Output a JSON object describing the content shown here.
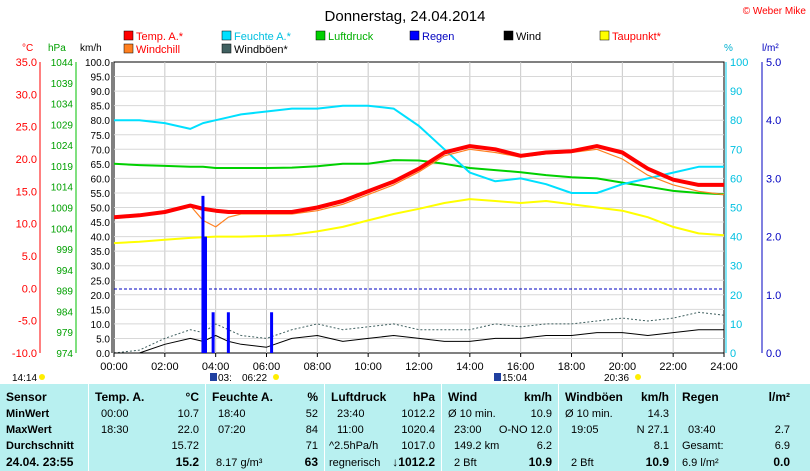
{
  "title": "Donnerstag, 24.04.2014",
  "credit": "© Weber Mike",
  "colors": {
    "temp": "#ff0000",
    "windchill": "#ff8020",
    "humidity": "#00e0ff",
    "pressure": "#00d000",
    "rain": "#0000ff",
    "wind": "#000000",
    "gust": "#406060",
    "dewpoint": "#ffff00"
  },
  "legend": [
    {
      "key": "temp",
      "label": "Temp. A.*"
    },
    {
      "key": "humidity",
      "label": "Feuchte A.*"
    },
    {
      "key": "pressure",
      "label": "Luftdruck"
    },
    {
      "key": "rain",
      "label": "Regen"
    },
    {
      "key": "wind",
      "label": "Wind"
    },
    {
      "key": "dewpoint",
      "label": "Taupunkt*"
    },
    {
      "key": "windchill",
      "label": "Windchill"
    },
    {
      "key": "gust",
      "label": "Windböen*"
    }
  ],
  "axes": {
    "temp_unit": "°C",
    "press_unit": "hPa",
    "wind_unit": "km/h",
    "hum_unit": "%",
    "rain_unit": "l/m²",
    "temp_ticks": [
      "35.0",
      "30.0",
      "25.0",
      "20.0",
      "15.0",
      "10.0",
      "5.0",
      "0.0",
      "-5.0",
      "-10.0"
    ],
    "press_ticks": [
      "1044",
      "1039",
      "1034",
      "1029",
      "1024",
      "1019",
      "1014",
      "1009",
      "1004",
      "999",
      "994",
      "989",
      "984",
      "979",
      "974"
    ],
    "wind_ticks": [
      "100.0",
      "95.0",
      "90.0",
      "85.0",
      "80.0",
      "75.0",
      "70.0",
      "65.0",
      "60.0",
      "55.0",
      "50.0",
      "45.0",
      "40.0",
      "35.0",
      "30.0",
      "25.0",
      "20.0",
      "15.0",
      "10.0",
      "5.0",
      "0.0"
    ],
    "hum_ticks": [
      "100",
      "90",
      "80",
      "70",
      "60",
      "50",
      "40",
      "30",
      "20",
      "10",
      "0"
    ],
    "rain_ticks": [
      "5.0",
      "4.0",
      "3.0",
      "2.0",
      "1.0",
      "0.0"
    ],
    "x_ticks": [
      "00:00",
      "02:00",
      "04:00",
      "06:00",
      "08:00",
      "10:00",
      "12:00",
      "14:00",
      "16:00",
      "18:00",
      "20:00",
      "22:00",
      "24:00"
    ]
  },
  "markers": {
    "m1": "14:14",
    "m2": "03:",
    "m3": "06:22",
    "m4": "15:04",
    "m5": "20:36"
  },
  "chart_data": {
    "type": "line",
    "x_hours": [
      0,
      1,
      2,
      3,
      3.5,
      4,
      4.5,
      5,
      6,
      7,
      8,
      9,
      10,
      11,
      12,
      13,
      14,
      15,
      16,
      17,
      18,
      19,
      20,
      21,
      22,
      23,
      24
    ],
    "series": [
      {
        "name": "Temp. A.*",
        "unit": "°C",
        "values": [
          11.0,
          11.3,
          11.8,
          12.8,
          12.3,
          12.0,
          11.8,
          11.8,
          11.8,
          11.8,
          12.5,
          13.5,
          15.0,
          16.5,
          18.5,
          21.0,
          22.0,
          21.5,
          20.5,
          21.0,
          21.2,
          22.0,
          21.0,
          18.5,
          16.8,
          16.0,
          16.0
        ]
      },
      {
        "name": "Windchill",
        "unit": "°C",
        "values": [
          11.0,
          11.3,
          11.8,
          12.8,
          10.5,
          9.5,
          11.0,
          11.5,
          11.5,
          11.5,
          12.0,
          13.0,
          14.5,
          16.0,
          18.0,
          20.5,
          21.5,
          21.0,
          20.3,
          20.8,
          21.0,
          21.5,
          20.0,
          17.5,
          16.0,
          15.0,
          14.5
        ]
      },
      {
        "name": "Feuchte A.*",
        "unit": "%",
        "values": [
          80,
          80,
          79,
          77,
          79,
          80,
          81,
          82,
          83,
          84,
          84,
          85,
          85,
          84,
          78,
          70,
          62,
          59,
          60,
          58,
          55,
          55,
          58,
          60,
          62,
          64,
          64
        ]
      },
      {
        "name": "Luftdruck",
        "unit": "hPa",
        "values": [
          1019.5,
          1019.2,
          1019.0,
          1018.8,
          1018.8,
          1018.5,
          1018.5,
          1018.5,
          1018.5,
          1018.6,
          1018.9,
          1019.5,
          1019.5,
          1020.4,
          1020.3,
          1019.5,
          1018.5,
          1018.0,
          1017.5,
          1016.8,
          1016.3,
          1016.0,
          1015.0,
          1014.0,
          1013.0,
          1012.5,
          1012.2
        ]
      },
      {
        "name": "Taupunkt*",
        "unit": "°C",
        "values": [
          7.0,
          7.2,
          7.5,
          7.8,
          7.9,
          8.0,
          8.0,
          8.0,
          8.1,
          8.3,
          8.8,
          9.5,
          10.5,
          11.5,
          12.3,
          13.2,
          13.8,
          13.5,
          13.2,
          13.5,
          13.0,
          12.5,
          12.0,
          11.0,
          9.5,
          8.5,
          8.2
        ]
      },
      {
        "name": "Wind",
        "unit": "km/h",
        "values": [
          0,
          0,
          3,
          5,
          4,
          6,
          4,
          3,
          2,
          5,
          6,
          4,
          5,
          6,
          5,
          4,
          4,
          5,
          5,
          6,
          6,
          7,
          7,
          6,
          7,
          8,
          8
        ]
      },
      {
        "name": "Windböen*",
        "unit": "km/h",
        "values": [
          0,
          1,
          5,
          8,
          7,
          10,
          8,
          6,
          5,
          8,
          10,
          8,
          9,
          10,
          8,
          8,
          8,
          10,
          9,
          10,
          10,
          11,
          12,
          11,
          12,
          14,
          13
        ]
      },
      {
        "name": "Regen",
        "unit": "l/m²",
        "type": "bar",
        "x_hours": [
          3.5,
          3.6,
          3.9,
          4.5,
          6.2
        ],
        "values": [
          2.7,
          2.0,
          0.7,
          0.7,
          0.7
        ]
      }
    ]
  },
  "stats": {
    "sensor": {
      "header": "Sensor",
      "rows": [
        "MinWert",
        "MaxWert",
        "Durchschnitt"
      ],
      "current": "24.04. 23:55"
    },
    "temp": {
      "header": "Temp. A.",
      "unit": "°C",
      "min_time": "00:00",
      "min": "10.7",
      "max_time": "18:30",
      "max": "22.0",
      "avg": "15.72",
      "current": "15.2"
    },
    "hum": {
      "header": "Feuchte A.",
      "unit": "%",
      "min_time": "18:40",
      "min": "52",
      "max_time": "07:20",
      "max": "84",
      "avg": "71",
      "abs": "8.17 g/m³",
      "current": "63"
    },
    "press": {
      "header": "Luftdruck",
      "unit": "hPa",
      "min_time": "23:40",
      "min": "1012.2",
      "max_time": "11:00",
      "max": "1020.4",
      "trend": "^2.5hPa/h",
      "avg": "1017.0",
      "state": "regnerisch",
      "current": "↓1012.2"
    },
    "wind": {
      "header": "Wind",
      "unit": "km/h",
      "r1a": "Ø 10 min.",
      "r1b": "10.9",
      "r2a": "23:00",
      "r2b": "O-NO 12.0",
      "r3a": "149.2 km",
      "r3b": "6.2",
      "r4a": "2 Bft",
      "r4b": "10.9"
    },
    "gust": {
      "header": "Windböen",
      "unit": "km/h",
      "r1a": "Ø 10 min.",
      "r1b": "14.3",
      "r2a": "19:05",
      "r2b": "N 27.1",
      "r3b": "8.1",
      "r4a": "2 Bft",
      "r4b": "10.9"
    },
    "rain": {
      "header": "Regen",
      "unit": "l/m²",
      "r2a": "03:40",
      "r2b": "2.7",
      "r3a": "Gesamt:",
      "r3b": "6.9",
      "r4a": "6.9 l/m²",
      "r4b": "0.0"
    }
  }
}
